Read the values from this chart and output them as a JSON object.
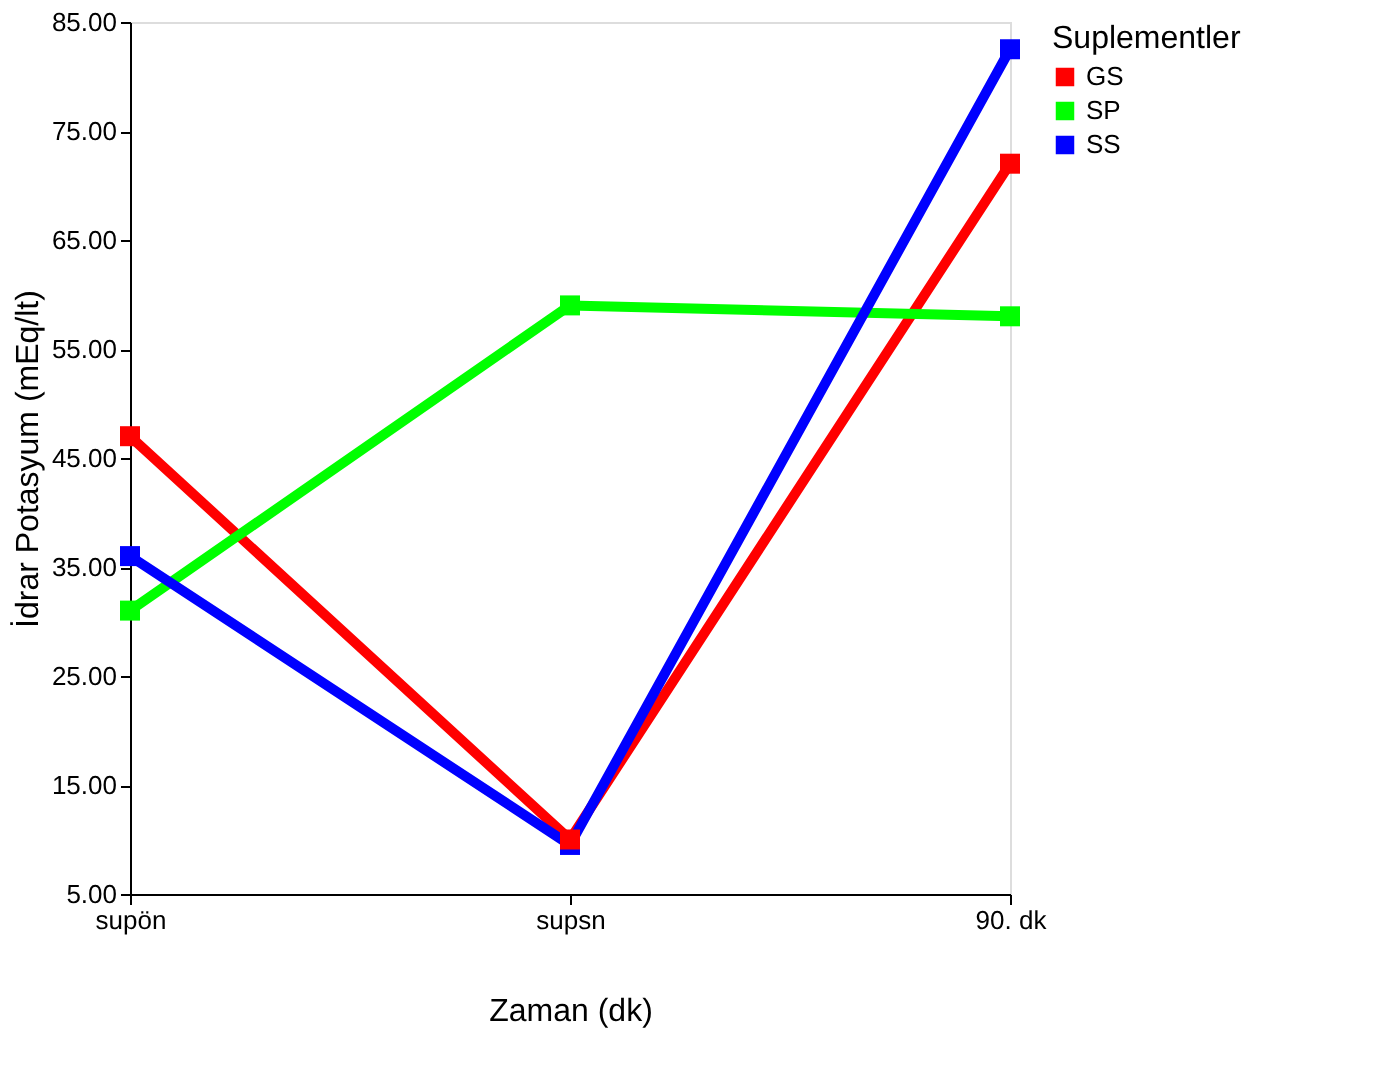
{
  "chart_data": {
    "type": "line",
    "xlabel": "Zaman (dk)",
    "ylabel": "İdrar Potasyum (mEq/lt)",
    "legend_title": "Suplementler",
    "categories": [
      "supön",
      "supsn",
      "90. dk"
    ],
    "series": [
      {
        "name": "GS",
        "color": "#ff0000",
        "values": [
          47,
          10,
          72
        ]
      },
      {
        "name": "SP",
        "color": "#00ff00",
        "values": [
          31,
          59,
          58
        ]
      },
      {
        "name": "SS",
        "color": "#0000ff",
        "values": [
          36,
          9.5,
          82.5
        ]
      }
    ],
    "ylim": [
      5,
      85
    ],
    "yticks": [
      {
        "value": 5,
        "label": "5.00"
      },
      {
        "value": 15,
        "label": "15.00"
      },
      {
        "value": 25,
        "label": "25.00"
      },
      {
        "value": 35,
        "label": "35.00"
      },
      {
        "value": 45,
        "label": "45.00"
      },
      {
        "value": 55,
        "label": "55.00"
      },
      {
        "value": 65,
        "label": "65.00"
      },
      {
        "value": 75,
        "label": "75.00"
      },
      {
        "value": 85,
        "label": "85.00"
      }
    ],
    "marker": "square",
    "line_style": "solid",
    "grid": false,
    "legend": "right"
  }
}
